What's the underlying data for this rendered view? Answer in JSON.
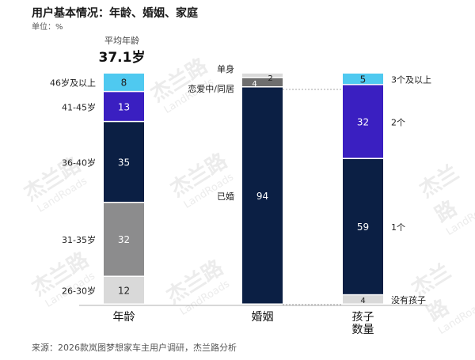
{
  "title": "用户基本情况：年龄、婚姻、家庭",
  "unit": "单位：%",
  "avg_age": {
    "label": "平均年龄",
    "value": "37.1岁"
  },
  "source": "来源：2026款岚图梦想家车主用户调研，杰兰路分析",
  "watermark": {
    "cn": "杰兰路",
    "en": "LandRoads"
  },
  "colors": {
    "light_gray": "#d9d9d9",
    "mid_gray": "#8c8c8d",
    "navy": "#0b1f44",
    "purple": "#3a1fc1",
    "cyan": "#4fc9f0",
    "dark_gray": "#6e6e6e"
  },
  "chart_data": {
    "type": "bar",
    "stacked": true,
    "ylim": [
      0,
      100
    ],
    "bars": [
      {
        "name": "年龄",
        "segments": [
          {
            "label": "26-30岁",
            "value": 12,
            "color": "#d9d9d9"
          },
          {
            "label": "31-35岁",
            "value": 32,
            "color": "#8c8c8d"
          },
          {
            "label": "36-40岁",
            "value": 35,
            "color": "#0b1f44"
          },
          {
            "label": "41-45岁",
            "value": 13,
            "color": "#3a1fc1"
          },
          {
            "label": "46岁及以上",
            "value": 8,
            "color": "#4fc9f0"
          }
        ]
      },
      {
        "name": "婚姻",
        "segments": [
          {
            "label": "已婚",
            "value": 94,
            "color": "#0b1f44"
          },
          {
            "label": "恋爱中/同居",
            "value": 4,
            "color": "#6e6e6e"
          },
          {
            "label": "单身",
            "value": 2,
            "color": "#d9d9d9"
          }
        ]
      },
      {
        "name": "孩子\n数量",
        "segments": [
          {
            "label": "没有孩子",
            "value": 4,
            "color": "#d9d9d9"
          },
          {
            "label": "1个",
            "value": 59,
            "color": "#0b1f44"
          },
          {
            "label": "2个",
            "value": 32,
            "color": "#3a1fc1"
          },
          {
            "label": "3个及以上",
            "value": 5,
            "color": "#4fc9f0"
          }
        ]
      }
    ]
  }
}
